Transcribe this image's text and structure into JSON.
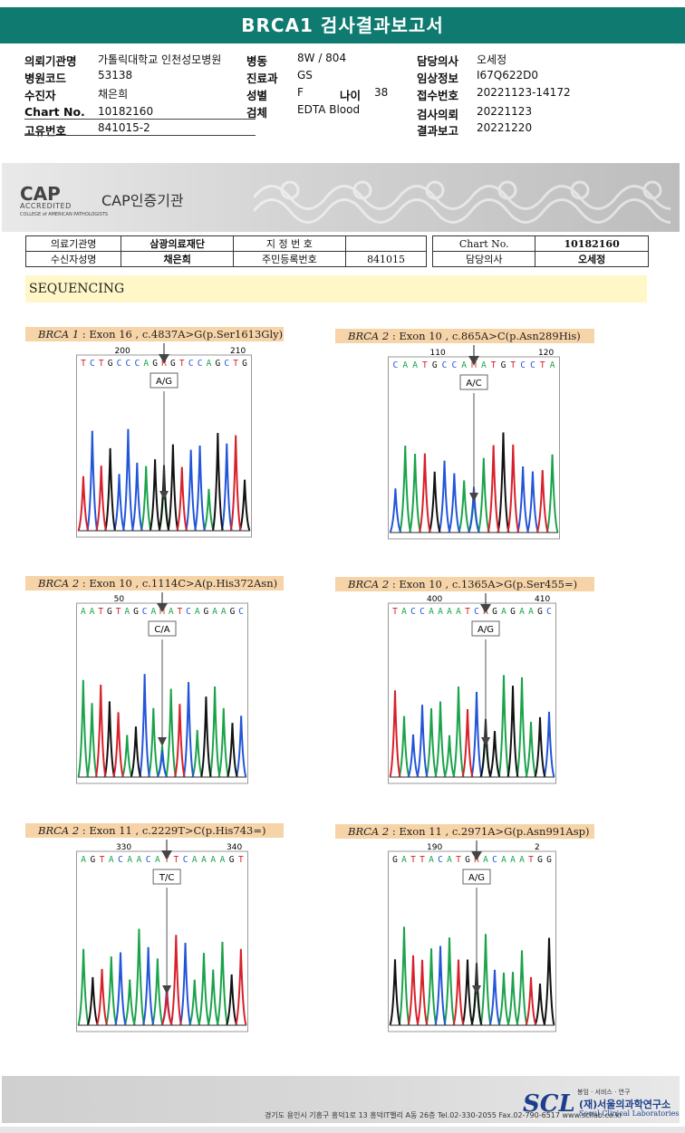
{
  "report": {
    "title": "BRCA1 검사결과보고서",
    "fields": [
      {
        "label": "의뢰기관명",
        "value": "가톨릭대학교 인천성모병원"
      },
      {
        "label": "병원코드",
        "value": "53138"
      },
      {
        "label": "수진자",
        "value": "채은희"
      },
      {
        "label": "Chart No.",
        "value": "10182160"
      },
      {
        "label": "고유번호",
        "value": "841015-2"
      },
      {
        "label": "병동",
        "value": "8W / 804"
      },
      {
        "label": "진료과",
        "value": "GS"
      },
      {
        "label": "성별",
        "value": "F"
      },
      {
        "label": "나이",
        "value": "38"
      },
      {
        "label": "검체",
        "value": "EDTA Blood"
      },
      {
        "label": "담당의사",
        "value": "오세정"
      },
      {
        "label": "임상정보",
        "value": "I67Q622D0"
      },
      {
        "label": "접수번호",
        "value": "20221123-14172"
      },
      {
        "label": "검사의뢰",
        "value": "20221123"
      },
      {
        "label": "결과보고",
        "value": "20221220"
      }
    ]
  },
  "cap": {
    "logo": "CAP",
    "accredited": "ACCREDITED",
    "college": "COLLEGE of AMERICAN PATHOLOGISTS",
    "title": "CAP인증기관"
  },
  "header_table": {
    "institution_label": "의료기관명",
    "institution_value": "삼광의료재단",
    "reg_label": "지 정 번 호",
    "chart_label": "Chart No.",
    "chart_value": "10182160",
    "name_label": "수신자성명",
    "name_value": "채은희",
    "id_label": "주민등록번호",
    "id_value": "841015",
    "doctor_label": "담당의사",
    "doctor_value": "오세정"
  },
  "section": "SEQUENCING",
  "panels": [
    {
      "gene": "BRCA 1",
      "desc": " : Exon 16 , c.4837A>G(p.Ser1613Gly)",
      "pos1": "200",
      "pos2": "210",
      "seq": "TCTGCCCAGRGTCCAGCTG",
      "call": "A/G"
    },
    {
      "gene": "BRCA 2",
      "desc": " : Exon 10 , c.865A>C(p.Asn289His)",
      "pos1": "110",
      "pos2": "120",
      "seq": "CAATGCCAMATGTCCTA",
      "call": "A/C"
    },
    {
      "gene": "BRCA 2",
      "desc": " : Exon 10 , c.1114C>A(p.His372Asn)",
      "pos1": "50",
      "pos2": "",
      "seq": "AATGTAGCAMATCAGAAGC",
      "call": "C/A"
    },
    {
      "gene": "BRCA 2",
      "desc": " : Exon 10 , c.1365A>G(p.Ser455=)",
      "pos1": "400",
      "pos2": "410",
      "seq": "TACCAAAATCRGAGAAGC",
      "call": "A/G"
    },
    {
      "gene": "BRCA 2",
      "desc": " : Exon 11 , c.2229T>C(p.His743=)",
      "pos1": "330",
      "pos2": "340",
      "seq": "AGTACAACAYTCAAAAGT",
      "call": "T/C"
    },
    {
      "gene": "BRCA 2",
      "desc": " : Exon 11 , c.2971A>G(p.Asn991Asp)",
      "pos1": "190",
      "pos2": "2",
      "seq": "GATTACATGRACAAATGG",
      "call": "A/G"
    }
  ],
  "footer": {
    "address": "경기도 용인시 기흥구 흥덕1로 13 흥덕IT밸리 A동 26층   Tel.02-330-2055   Fax.02-790-6517   www.scllab.co.kr",
    "scl_logo": "SCL",
    "scl_tagline": "봉임 · 서비스 · 연구",
    "scl_name": "(재)서울의과학연구소",
    "scl_eng": "Seoul Clinical Laboratories"
  },
  "colors": {
    "title_bg": "#0e7a70",
    "label_bg": "#f7d4a8",
    "seq_bg": "#fff7c8",
    "A": "#1aa34a",
    "C": "#2255d8",
    "G": "#111111",
    "T": "#d8202a"
  }
}
